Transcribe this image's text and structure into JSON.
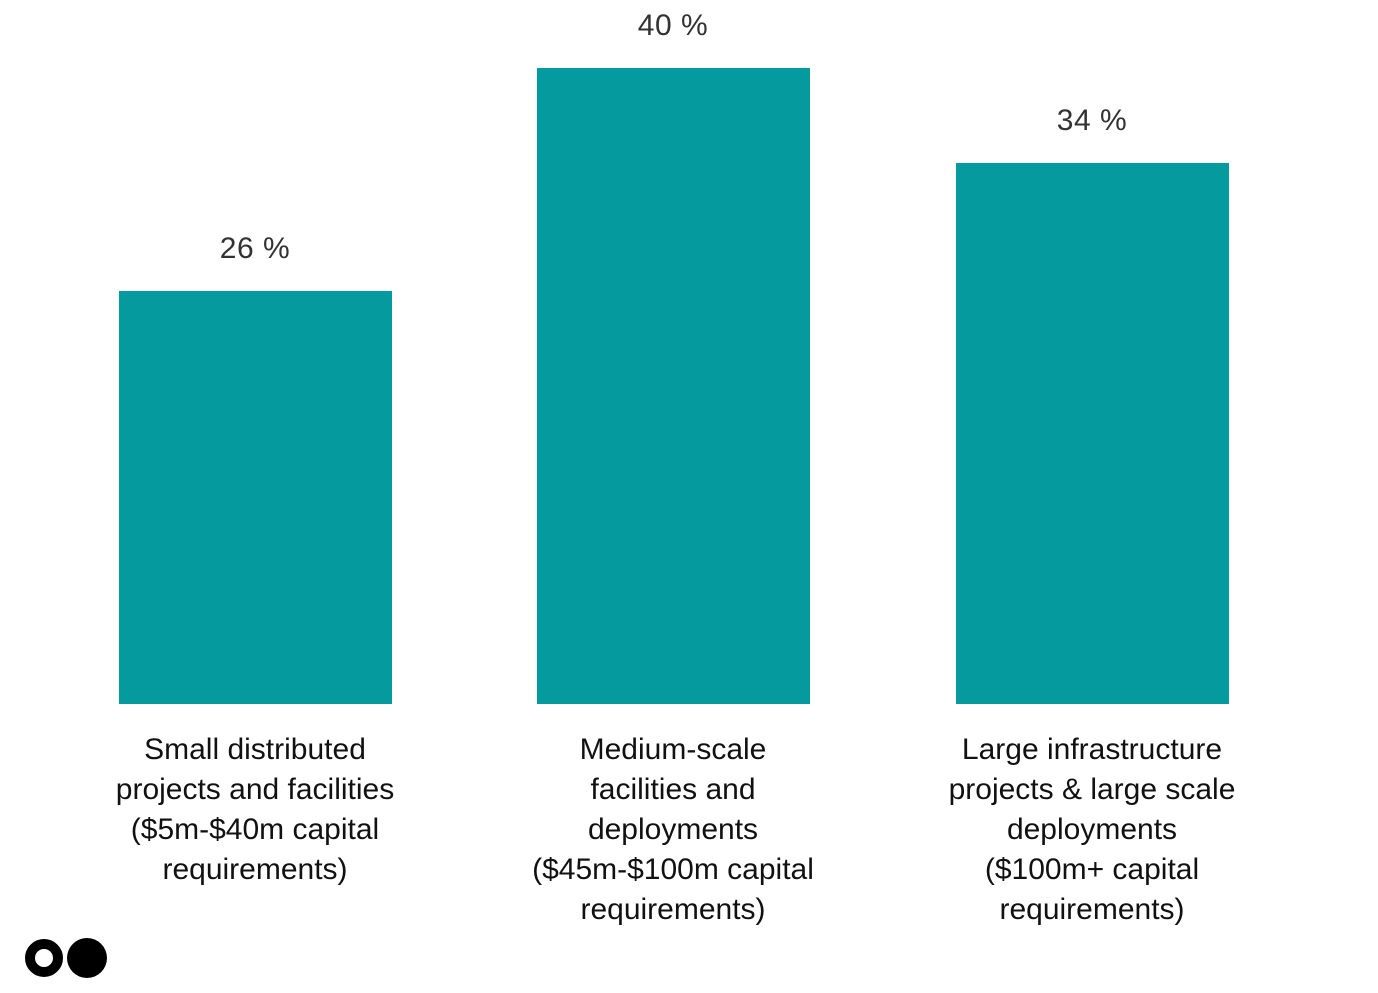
{
  "chart_data": {
    "type": "bar",
    "title": "",
    "categories": [
      "Small distributed projects and facilities ($5m-$40m capital requirements)",
      "Medium-scale facilities and deployments ($45m-$100m capital requirements)",
      "Large infrastructure projects & large scale deployments ($100m+ capital requirements)"
    ],
    "category_lines": [
      [
        "Small distributed",
        "projects and facilities",
        "($5m-$40m capital",
        "requirements)"
      ],
      [
        "Medium-scale",
        "facilities and",
        "deployments",
        "($45m-$100m capital",
        "requirements)"
      ],
      [
        "Large infrastructure",
        "projects & large scale",
        "deployments",
        "($100m+ capital",
        "requirements)"
      ]
    ],
    "values": [
      26,
      40,
      34
    ],
    "value_labels": [
      "26 %",
      "40 %",
      "34 %"
    ],
    "unit": "%",
    "ylim": [
      0,
      40
    ],
    "grid": false,
    "legend": "none",
    "axes_visible": false,
    "bar_color": "#059a9e",
    "value_label_color": "#333333",
    "category_label_color": "#111111",
    "background_color": "#ffffff"
  },
  "footer": {
    "logo_color": "#000000"
  }
}
